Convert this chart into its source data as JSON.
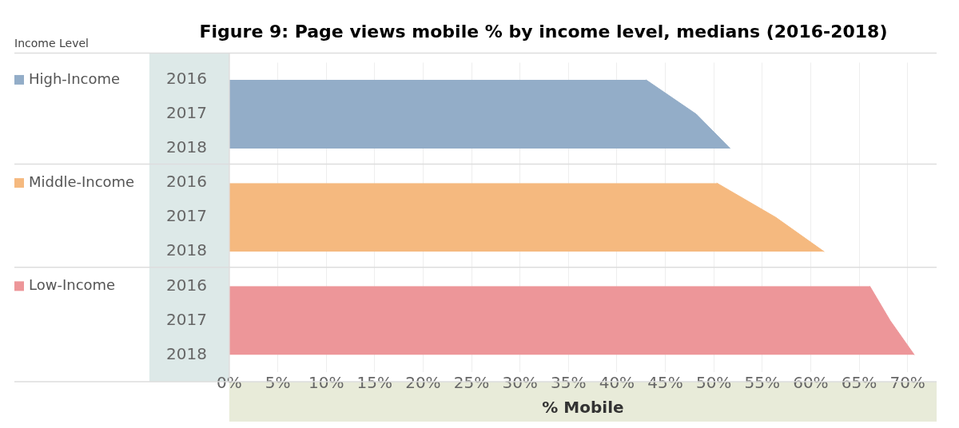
{
  "chart_data": {
    "type": "area",
    "orientation": "horizontal",
    "title": "Figure 9: Page views mobile % by income level, medians (2016-2018)",
    "legend_title": "Income Level",
    "xlabel": "% Mobile",
    "categories": [
      "2016",
      "2017",
      "2018",
      "2016",
      "2017",
      "2018",
      "2016",
      "2017",
      "2018"
    ],
    "series": [
      {
        "name": "High-Income",
        "color": "#93adc8",
        "values": [
          43.0,
          48.2,
          51.7,
          null,
          null,
          null,
          null,
          null,
          null
        ]
      },
      {
        "name": "Middle-Income",
        "color": "#f5b97f",
        "values": [
          null,
          null,
          null,
          50.3,
          56.4,
          61.4,
          null,
          null,
          null
        ]
      },
      {
        "name": "Low-Income",
        "color": "#ed9699",
        "values": [
          null,
          null,
          null,
          null,
          null,
          null,
          66.1,
          68.2,
          70.7
        ]
      }
    ],
    "xlim": [
      0,
      73
    ],
    "xticks": [
      {
        "value": 0,
        "label": "0%"
      },
      {
        "value": 5,
        "label": "5%"
      },
      {
        "value": 10,
        "label": "10%"
      },
      {
        "value": 15,
        "label": "15%"
      },
      {
        "value": 20,
        "label": "20%"
      },
      {
        "value": 25,
        "label": "25%"
      },
      {
        "value": 30,
        "label": "30%"
      },
      {
        "value": 35,
        "label": "35%"
      },
      {
        "value": 40,
        "label": "40%"
      },
      {
        "value": 45,
        "label": "45%"
      },
      {
        "value": 50,
        "label": "50%"
      },
      {
        "value": 55,
        "label": "55%"
      },
      {
        "value": 60,
        "label": "60%"
      },
      {
        "value": 65,
        "label": "65%"
      },
      {
        "value": 70,
        "label": "70%"
      }
    ],
    "grid": "x",
    "legend": "left"
  }
}
